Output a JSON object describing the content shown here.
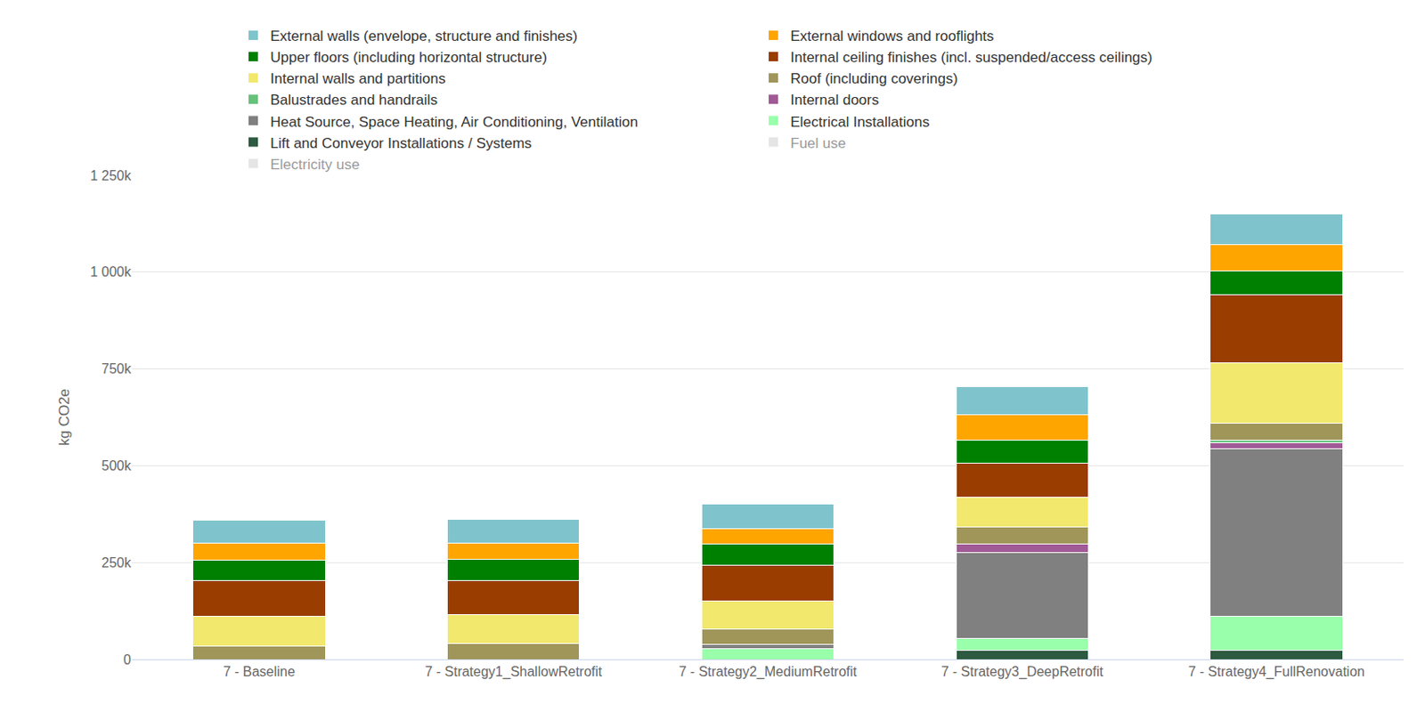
{
  "chart_data": {
    "type": "bar",
    "stacked": true,
    "grid": true,
    "legend": "top",
    "y_label": "kg CO2e",
    "categories": [
      "7 - Baseline",
      "7 - Strategy1_ShallowRetrofit",
      "7 - Strategy2_MediumRetrofit",
      "7 - Strategy3_DeepRetrofit",
      "7 - Strategy4_FullRenovation"
    ],
    "ylim": [
      0,
      1250000
    ],
    "yticks": [
      0,
      {
        "value": 250000,
        "label": "250k"
      },
      {
        "value": 500000,
        "label": "500k"
      },
      {
        "value": 750000,
        "label": "750k"
      },
      {
        "value": 1000000,
        "label": "1 000k"
      },
      {
        "value": 1250000,
        "label": "1 250k"
      }
    ],
    "series": [
      {
        "name": "External walls (envelope, structure and finishes)",
        "color": "#7fc4cc",
        "values": [
          61000,
          61000,
          63000,
          73000,
          77000
        ]
      },
      {
        "name": "External windows and rooflights",
        "color": "#ffa500",
        "values": [
          42000,
          42000,
          40000,
          66000,
          70000
        ]
      },
      {
        "name": "Upper floors (including horizontal structure)",
        "color": "#008000",
        "values": [
          54000,
          54000,
          56000,
          59000,
          61000
        ]
      },
      {
        "name": "Internal ceiling finishes (incl. suspended/access ceilings)",
        "color": "#993d00",
        "values": [
          91000,
          89000,
          91000,
          87000,
          176000
        ]
      },
      {
        "name": "Internal walls and partitions",
        "color": "#f2e86d",
        "values": [
          77000,
          75000,
          73000,
          77000,
          155000
        ]
      },
      {
        "name": "Roof (including coverings)",
        "color": "#a0965a",
        "values": [
          35000,
          40000,
          40000,
          45000,
          45000
        ]
      },
      {
        "name": "Balustrades and handrails",
        "color": "#66c27a",
        "values": [
          0,
          0,
          0,
          0,
          5000
        ]
      },
      {
        "name": "Internal doors",
        "color": "#a05a96",
        "values": [
          0,
          0,
          0,
          21000,
          16000
        ]
      },
      {
        "name": "Heat Source, Space Heating, Air Conditioning, Ventilation",
        "color": "#808080",
        "values": [
          0,
          0,
          10000,
          223000,
          432000
        ]
      },
      {
        "name": "Electrical Installations",
        "color": "#99ffaa",
        "values": [
          0,
          0,
          28000,
          30000,
          89000
        ]
      },
      {
        "name": "Lift and Conveyor Installations / Systems",
        "color": "#2d5a40",
        "values": [
          0,
          0,
          0,
          23000,
          23000
        ]
      },
      {
        "name": "Fuel use",
        "color": "#cccccc",
        "values": [
          null,
          null,
          null,
          null,
          null
        ]
      },
      {
        "name": "Electricity use",
        "color": "#cccccc",
        "values": [
          null,
          null,
          null,
          null,
          null
        ]
      }
    ]
  }
}
